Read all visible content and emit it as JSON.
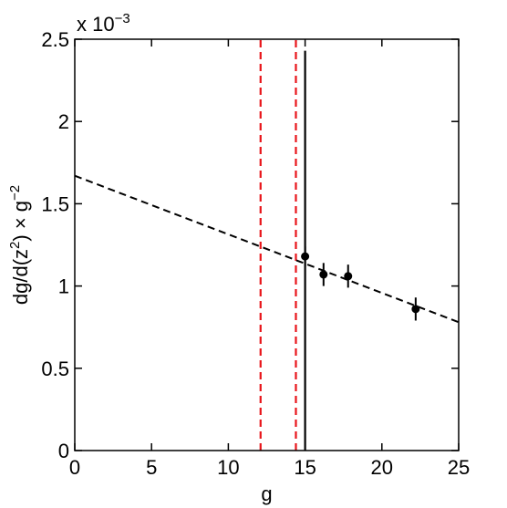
{
  "chart_data": {
    "type": "scatter",
    "xlabel": "g",
    "ylabel_parts": [
      "dg/d(z",
      "2",
      ") × g",
      "−2"
    ],
    "exponent_label": {
      "base": "x 10",
      "exp": "−3"
    },
    "xlim": [
      0,
      25
    ],
    "ylim": [
      0,
      2.5
    ],
    "x_ticks": [
      0,
      5,
      10,
      15,
      20,
      25
    ],
    "x_tick_labels": [
      "0",
      "5",
      "10",
      "15",
      "20",
      "25"
    ],
    "y_ticks": [
      0,
      0.5,
      1,
      1.5,
      2,
      2.5
    ],
    "y_tick_labels": [
      "0",
      "0.5",
      "1",
      "1.5",
      "2",
      "2.5"
    ],
    "points": [
      {
        "x": 15.0,
        "y": 1.18,
        "err": 0.06
      },
      {
        "x": 16.2,
        "y": 1.07,
        "err": 0.07
      },
      {
        "x": 17.8,
        "y": 1.06,
        "err": 0.07
      },
      {
        "x": 22.2,
        "y": 0.86,
        "err": 0.07
      }
    ],
    "fit_line": {
      "x": [
        0,
        25
      ],
      "y": [
        1.67,
        0.78
      ],
      "style": "dashed",
      "color": "#000000"
    },
    "vertical_lines": [
      {
        "x": 12.1,
        "color": "#e8141a",
        "style": "dashed",
        "y_top": 2.5
      },
      {
        "x": 14.4,
        "color": "#e8141a",
        "style": "dashed",
        "y_top": 2.5
      },
      {
        "x": 15.0,
        "color": "#000000",
        "style": "solid",
        "y_top": 2.43
      }
    ],
    "grid": false
  }
}
